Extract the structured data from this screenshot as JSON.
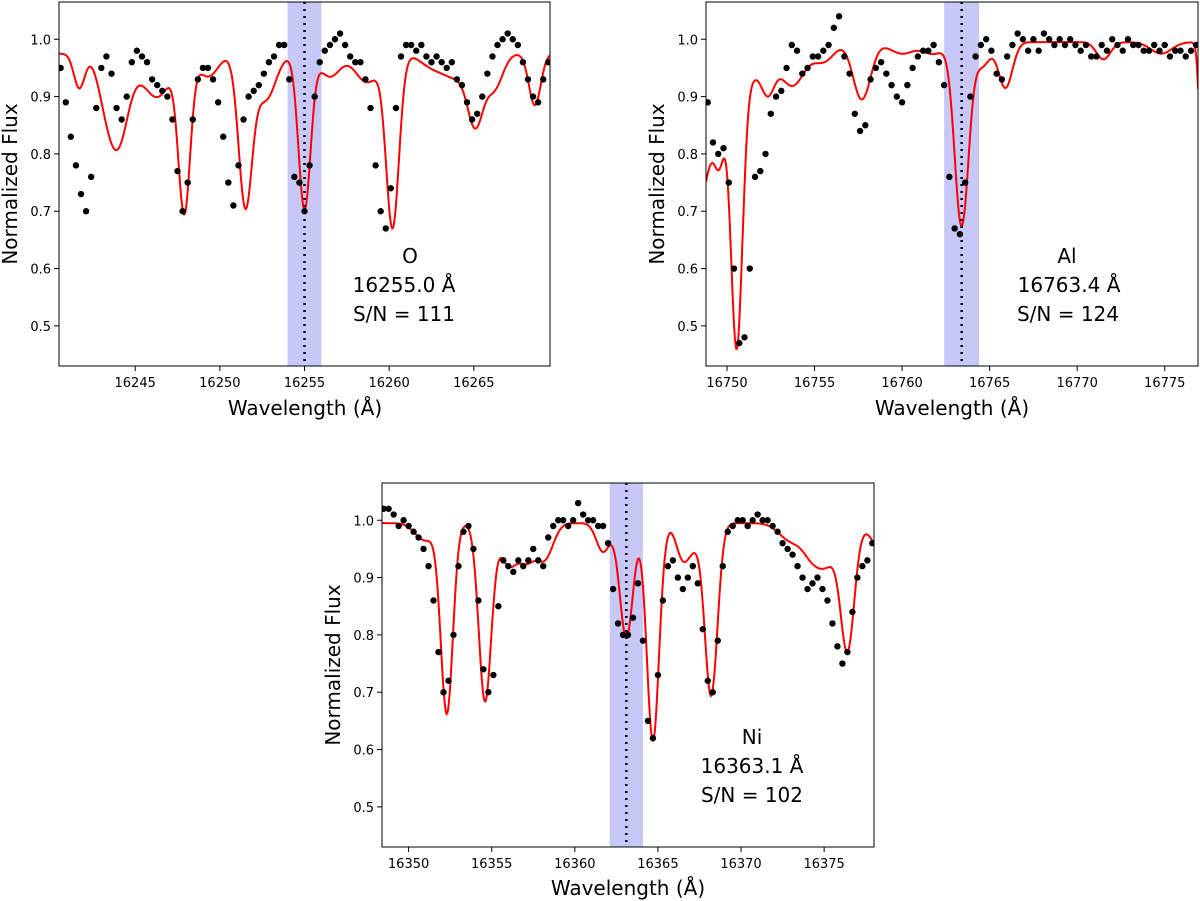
{
  "chart_data": [
    {
      "type": "line",
      "element": "O",
      "wavelength_text": "16255.0 Å",
      "snr_text": "S/N = 111",
      "xlabel": "Wavelength (Å)",
      "ylabel": "Normalized Flux",
      "xlim": [
        16240.5,
        16269.5
      ],
      "ylim": [
        0.43,
        1.065
      ],
      "xticks": [
        16245,
        16250,
        16255,
        16260,
        16265
      ],
      "yticks": [
        0.5,
        0.6,
        0.7,
        0.8,
        0.9,
        1.0
      ],
      "line_center": 16255.0,
      "band": [
        16254.0,
        16256.0
      ],
      "colors": {
        "model": "#ff0000",
        "observed": "#000000",
        "band": "#c8c8f8"
      },
      "continuum": 0.975,
      "lines": [
        [
          16241.7,
          0.06,
          0.32
        ],
        [
          16243.2,
          0.05,
          0.5
        ],
        [
          16244.0,
          0.15,
          0.6
        ],
        [
          16245.6,
          0.03,
          0.7
        ],
        [
          16246.5,
          0.06,
          0.7
        ],
        [
          16247.9,
          0.27,
          0.35
        ],
        [
          16249.3,
          0.04,
          0.6
        ],
        [
          16251.5,
          0.26,
          0.4
        ],
        [
          16252.7,
          0.08,
          0.6
        ],
        [
          16255.0,
          0.27,
          0.36
        ],
        [
          16256.5,
          0.04,
          0.6
        ],
        [
          16258.7,
          0.05,
          0.7
        ],
        [
          16260.2,
          0.3,
          0.38
        ],
        [
          16262.5,
          0.02,
          0.7
        ],
        [
          16264.0,
          0.04,
          0.8
        ],
        [
          16265.1,
          0.11,
          0.45
        ],
        [
          16266.2,
          0.06,
          0.5
        ],
        [
          16268.6,
          0.09,
          0.35
        ]
      ],
      "observed": {
        "x": [
          16240.6,
          16240.9,
          16241.2,
          16241.5,
          16241.8,
          16242.1,
          16242.4,
          16242.7,
          16243.0,
          16243.3,
          16243.6,
          16243.9,
          16244.2,
          16244.5,
          16244.8,
          16245.1,
          16245.4,
          16245.7,
          16246.0,
          16246.3,
          16246.6,
          16246.9,
          16247.2,
          16247.5,
          16247.8,
          16248.1,
          16248.4,
          16248.7,
          16249.0,
          16249.3,
          16249.6,
          16249.9,
          16250.2,
          16250.5,
          16250.8,
          16251.1,
          16251.4,
          16251.7,
          16252.0,
          16252.3,
          16252.6,
          16252.9,
          16253.2,
          16253.5,
          16253.8,
          16254.1,
          16254.4,
          16254.7,
          16255.0,
          16255.3,
          16255.6,
          16255.9,
          16256.2,
          16256.5,
          16256.8,
          16257.1,
          16257.4,
          16257.7,
          16258.0,
          16258.3,
          16258.6,
          16258.9,
          16259.2,
          16259.5,
          16259.8,
          16260.1,
          16260.4,
          16260.7,
          16261.0,
          16261.3,
          16261.6,
          16261.9,
          16262.2,
          16262.5,
          16262.8,
          16263.1,
          16263.4,
          16263.7,
          16264.0,
          16264.3,
          16264.6,
          16264.9,
          16265.2,
          16265.5,
          16265.8,
          16266.1,
          16266.4,
          16266.7,
          16267.0,
          16267.3,
          16267.6,
          16267.9,
          16268.2,
          16268.5,
          16268.8,
          16269.1,
          16269.4
        ],
        "y": [
          0.95,
          0.89,
          0.83,
          0.78,
          0.73,
          0.7,
          0.76,
          0.88,
          0.95,
          0.97,
          0.94,
          0.88,
          0.86,
          0.9,
          0.96,
          0.98,
          0.97,
          0.96,
          0.93,
          0.92,
          0.91,
          0.9,
          0.86,
          0.77,
          0.7,
          0.75,
          0.86,
          0.93,
          0.95,
          0.95,
          0.93,
          0.89,
          0.83,
          0.75,
          0.71,
          0.78,
          0.86,
          0.9,
          0.91,
          0.92,
          0.94,
          0.96,
          0.97,
          0.99,
          0.99,
          0.93,
          0.76,
          0.75,
          0.7,
          0.78,
          0.9,
          0.96,
          0.98,
          0.99,
          1.0,
          1.01,
          0.99,
          0.97,
          0.96,
          0.96,
          0.93,
          0.88,
          0.78,
          0.7,
          0.67,
          0.74,
          0.88,
          0.97,
          0.99,
          0.99,
          0.98,
          0.99,
          0.97,
          0.96,
          0.97,
          0.96,
          0.95,
          0.96,
          0.93,
          0.92,
          0.89,
          0.86,
          0.87,
          0.9,
          0.94,
          0.97,
          0.99,
          1.0,
          1.01,
          1.0,
          0.99,
          0.96,
          0.93,
          0.9,
          0.89,
          0.93,
          0.96
        ]
      }
    },
    {
      "type": "line",
      "element": "Al",
      "wavelength_text": "16763.4 Å",
      "snr_text": "S/N = 124",
      "xlabel": "Wavelength (Å)",
      "ylabel": "Normalized Flux",
      "xlim": [
        16748.8,
        16776.9
      ],
      "ylim": [
        0.43,
        1.065
      ],
      "xticks": [
        16750,
        16755,
        16760,
        16765,
        16770,
        16775
      ],
      "yticks": [
        0.5,
        0.6,
        0.7,
        0.8,
        0.9,
        1.0
      ],
      "line_center": 16763.4,
      "band": [
        16762.4,
        16764.4
      ],
      "colors": {
        "model": "#ff0000",
        "observed": "#000000",
        "band": "#c8c8f8"
      },
      "continuum": 0.995,
      "lines": [
        [
          16748.2,
          0.3,
          0.9
        ],
        [
          16749.6,
          0.12,
          0.3
        ],
        [
          16750.55,
          0.52,
          0.34
        ],
        [
          16751.4,
          0.05,
          0.4
        ],
        [
          16752.3,
          0.08,
          0.4
        ],
        [
          16753.3,
          0.04,
          0.6
        ],
        [
          16754.0,
          0.05,
          0.6
        ],
        [
          16755.2,
          0.02,
          0.5
        ],
        [
          16755.8,
          0.02,
          0.5
        ],
        [
          16757.7,
          0.1,
          0.5
        ],
        [
          16760.0,
          0.02,
          0.7
        ],
        [
          16761.8,
          0.02,
          0.6
        ],
        [
          16763.4,
          0.32,
          0.4
        ],
        [
          16764.6,
          0.04,
          0.4
        ],
        [
          16765.9,
          0.08,
          0.4
        ],
        [
          16771.5,
          0.03,
          0.4
        ],
        [
          16774.8,
          0.02,
          0.6
        ],
        [
          16777.3,
          0.6,
          0.2
        ]
      ],
      "observed": {
        "x": [
          16748.9,
          16749.2,
          16749.5,
          16749.8,
          16750.1,
          16750.4,
          16750.7,
          16751.0,
          16751.3,
          16751.6,
          16751.9,
          16752.2,
          16752.5,
          16752.8,
          16753.1,
          16753.4,
          16753.7,
          16754.0,
          16754.3,
          16754.6,
          16754.9,
          16755.2,
          16755.5,
          16755.8,
          16756.1,
          16756.4,
          16756.7,
          16757.0,
          16757.3,
          16757.6,
          16757.9,
          16758.2,
          16758.5,
          16758.8,
          16759.1,
          16759.4,
          16759.7,
          16760.0,
          16760.3,
          16760.6,
          16760.9,
          16761.2,
          16761.5,
          16761.8,
          16762.1,
          16762.4,
          16762.7,
          16763.0,
          16763.3,
          16763.6,
          16763.9,
          16764.2,
          16764.5,
          16764.8,
          16765.1,
          16765.4,
          16765.7,
          16766.0,
          16766.3,
          16766.6,
          16766.9,
          16767.2,
          16767.5,
          16767.8,
          16768.1,
          16768.4,
          16768.7,
          16769.0,
          16769.3,
          16769.6,
          16769.9,
          16770.2,
          16770.5,
          16770.8,
          16771.1,
          16771.4,
          16771.7,
          16772.0,
          16772.3,
          16772.6,
          16772.9,
          16773.2,
          16773.5,
          16773.8,
          16774.1,
          16774.4,
          16774.7,
          16775.0,
          16775.3,
          16775.6,
          16775.9,
          16776.2,
          16776.5,
          16776.8
        ],
        "y": [
          0.89,
          0.82,
          0.8,
          0.81,
          0.75,
          0.6,
          0.47,
          0.48,
          0.6,
          0.76,
          0.77,
          0.8,
          0.87,
          0.9,
          0.91,
          0.95,
          0.99,
          0.98,
          0.94,
          0.95,
          0.97,
          0.97,
          0.98,
          0.99,
          1.02,
          1.04,
          0.97,
          0.94,
          0.87,
          0.84,
          0.85,
          0.93,
          0.95,
          0.96,
          0.94,
          0.92,
          0.9,
          0.89,
          0.92,
          0.95,
          0.97,
          0.98,
          0.98,
          0.99,
          0.96,
          0.92,
          0.76,
          0.67,
          0.66,
          0.75,
          0.9,
          0.97,
          0.99,
          1.0,
          0.98,
          0.94,
          0.93,
          0.97,
          0.99,
          1.01,
          1.0,
          0.98,
          1.0,
          0.98,
          1.01,
          1.0,
          0.99,
          1.0,
          0.99,
          1.0,
          0.99,
          0.98,
          0.99,
          0.97,
          0.97,
          0.99,
          0.98,
          1.0,
          0.99,
          0.98,
          1.0,
          0.99,
          0.99,
          0.98,
          0.98,
          0.99,
          0.98,
          0.99,
          0.97,
          0.98,
          0.98,
          0.97,
          0.98,
          0.99
        ]
      }
    },
    {
      "type": "line",
      "element": "Ni",
      "wavelength_text": "16363.1 Å",
      "snr_text": "S/N = 102",
      "xlabel": "Wavelength (Å)",
      "ylabel": "Normalized Flux",
      "xlim": [
        16348.4,
        16378.0
      ],
      "ylim": [
        0.43,
        1.065
      ],
      "xticks": [
        16350,
        16355,
        16360,
        16365,
        16370,
        16375
      ],
      "yticks": [
        0.5,
        0.6,
        0.7,
        0.8,
        0.9,
        1.0
      ],
      "line_center": 16363.1,
      "band": [
        16362.1,
        16364.1
      ],
      "colors": {
        "model": "#ff0000",
        "observed": "#000000",
        "band": "#c8c8f8"
      },
      "continuum": 0.995,
      "lines": [
        [
          16351.0,
          0.03,
          0.6
        ],
        [
          16352.3,
          0.33,
          0.36
        ],
        [
          16354.6,
          0.31,
          0.38
        ],
        [
          16356.0,
          0.07,
          0.5
        ],
        [
          16357.1,
          0.06,
          0.5
        ],
        [
          16358.2,
          0.06,
          0.5
        ],
        [
          16361.7,
          0.05,
          0.4
        ],
        [
          16363.1,
          0.2,
          0.4
        ],
        [
          16364.7,
          0.38,
          0.37
        ],
        [
          16366.5,
          0.06,
          0.4
        ],
        [
          16367.2,
          0.03,
          0.4
        ],
        [
          16368.2,
          0.3,
          0.38
        ],
        [
          16373.0,
          0.03,
          0.7
        ],
        [
          16374.4,
          0.06,
          0.6
        ],
        [
          16375.3,
          0.05,
          0.5
        ],
        [
          16376.4,
          0.22,
          0.42
        ],
        [
          16378.5,
          0.05,
          0.6
        ]
      ],
      "observed": {
        "x": [
          16348.5,
          16348.8,
          16349.1,
          16349.4,
          16349.7,
          16350.0,
          16350.3,
          16350.6,
          16350.9,
          16351.2,
          16351.5,
          16351.8,
          16352.1,
          16352.4,
          16352.7,
          16353.0,
          16353.3,
          16353.6,
          16353.9,
          16354.2,
          16354.5,
          16354.8,
          16355.1,
          16355.4,
          16355.7,
          16356.0,
          16356.3,
          16356.6,
          16356.9,
          16357.2,
          16357.5,
          16357.8,
          16358.1,
          16358.4,
          16358.7,
          16359.0,
          16359.3,
          16359.6,
          16359.9,
          16360.2,
          16360.5,
          16360.8,
          16361.1,
          16361.4,
          16361.7,
          16362.0,
          16362.3,
          16362.6,
          16362.9,
          16363.2,
          16363.5,
          16363.8,
          16364.1,
          16364.4,
          16364.7,
          16365.0,
          16365.3,
          16365.6,
          16365.9,
          16366.2,
          16366.5,
          16366.8,
          16367.1,
          16367.4,
          16367.7,
          16368.0,
          16368.3,
          16368.6,
          16368.9,
          16369.2,
          16369.5,
          16369.8,
          16370.1,
          16370.4,
          16370.7,
          16371.0,
          16371.3,
          16371.6,
          16371.9,
          16372.2,
          16372.5,
          16372.8,
          16373.1,
          16373.4,
          16373.7,
          16374.0,
          16374.3,
          16374.6,
          16374.9,
          16375.2,
          16375.5,
          16375.8,
          16376.1,
          16376.4,
          16376.7,
          16377.0,
          16377.3,
          16377.6,
          16377.9
        ],
        "y": [
          1.02,
          1.02,
          1.01,
          0.99,
          1.0,
          0.99,
          0.98,
          0.97,
          0.95,
          0.92,
          0.86,
          0.77,
          0.7,
          0.72,
          0.8,
          0.92,
          0.98,
          0.99,
          0.95,
          0.86,
          0.74,
          0.7,
          0.73,
          0.85,
          0.93,
          0.92,
          0.91,
          0.93,
          0.92,
          0.93,
          0.95,
          0.93,
          0.92,
          0.97,
          0.99,
          1.0,
          1.0,
          0.99,
          1.0,
          1.03,
          1.01,
          1.0,
          1.0,
          0.99,
          0.99,
          0.96,
          0.88,
          0.82,
          0.8,
          0.8,
          0.83,
          0.89,
          0.79,
          0.65,
          0.62,
          0.73,
          0.86,
          0.92,
          0.93,
          0.9,
          0.88,
          0.9,
          0.92,
          0.89,
          0.81,
          0.72,
          0.7,
          0.79,
          0.92,
          0.98,
          0.99,
          1.0,
          1.0,
          0.99,
          1.0,
          1.01,
          1.0,
          1.0,
          0.99,
          0.98,
          0.96,
          0.95,
          0.94,
          0.92,
          0.9,
          0.88,
          0.89,
          0.9,
          0.88,
          0.86,
          0.82,
          0.78,
          0.75,
          0.77,
          0.84,
          0.9,
          0.92,
          0.93,
          0.96
        ]
      }
    }
  ]
}
